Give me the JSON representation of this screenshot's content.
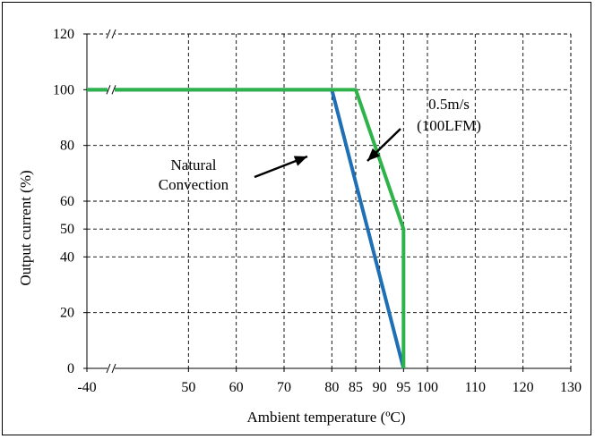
{
  "chart_data": {
    "type": "line",
    "title": "",
    "xlabel": "Ambient temperature (ºC)",
    "ylabel": "Output current (%)",
    "x_tick_labels": [
      "-40",
      "50",
      "60",
      "70",
      "80",
      "85",
      "90",
      "95",
      "100",
      "110",
      "120",
      "130"
    ],
    "y_tick_labels": [
      "0",
      "20",
      "40",
      "50",
      "60",
      "80",
      "100",
      "120"
    ],
    "xlim": [
      40,
      130
    ],
    "ylim": [
      0,
      120
    ],
    "axis_break": {
      "x_from": -40,
      "x_to": 40,
      "y_from": 0,
      "y_to": 0
    },
    "grid": true,
    "series": [
      {
        "name": "Natural Convection",
        "color": "#1f6fb5",
        "x": [
          -40,
          80,
          95
        ],
        "y": [
          100,
          100,
          0
        ]
      },
      {
        "name": "0.5m/s (100LFM)",
        "color": "#2db34a",
        "x": [
          -40,
          85,
          95,
          95
        ],
        "y": [
          100,
          100,
          50,
          0
        ]
      }
    ],
    "annotations": [
      {
        "text_lines": [
          "Natural",
          "Convection"
        ],
        "series": "Natural Convection"
      },
      {
        "text_lines": [
          "0.5m/s",
          "(100LFM)"
        ],
        "series": "0.5m/s (100LFM)"
      }
    ]
  }
}
